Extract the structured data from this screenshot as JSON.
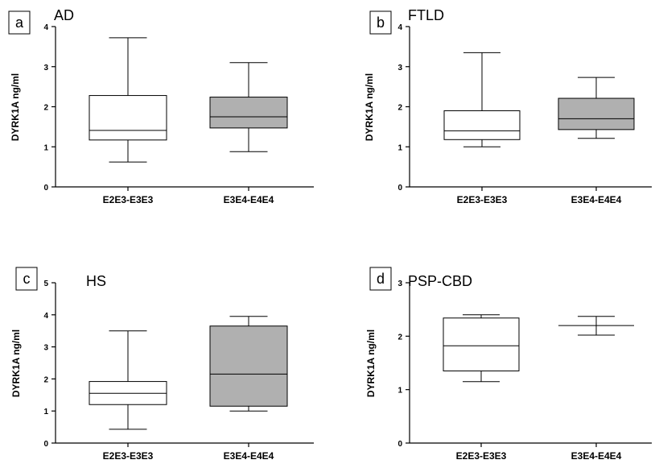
{
  "chart_data": [
    {
      "type": "box",
      "panel_letter": "a",
      "title": "AD",
      "ylabel": "DYRK1A ng/ml",
      "ylim": [
        0,
        4
      ],
      "yticks": [
        "0",
        "1",
        "2",
        "3",
        "4"
      ],
      "categories": [
        "E2E3-E3E3",
        "E3E4-E4E4"
      ],
      "boxes": [
        {
          "min": 0.62,
          "q1": 1.17,
          "median": 1.41,
          "q3": 2.28,
          "max": 3.72,
          "fill": "#ffffff"
        },
        {
          "min": 0.88,
          "q1": 1.47,
          "median": 1.75,
          "q3": 2.24,
          "max": 3.1,
          "fill": "#b0b0b0"
        }
      ]
    },
    {
      "type": "box",
      "panel_letter": "b",
      "title": "FTLD",
      "ylabel": "DYRK1A ng/ml",
      "ylim": [
        0,
        4
      ],
      "yticks": [
        "0",
        "1",
        "2",
        "3",
        "4"
      ],
      "categories": [
        "E2E3-E3E3",
        "E3E4-E4E4"
      ],
      "boxes": [
        {
          "min": 1.0,
          "q1": 1.18,
          "median": 1.4,
          "q3": 1.9,
          "max": 3.35,
          "fill": "#ffffff"
        },
        {
          "min": 1.21,
          "q1": 1.43,
          "median": 1.7,
          "q3": 2.21,
          "max": 2.73,
          "fill": "#b0b0b0"
        }
      ]
    },
    {
      "type": "box",
      "panel_letter": "c",
      "title": "HS",
      "ylabel": "DYRK1A ng/ml",
      "ylim": [
        0,
        5
      ],
      "yticks": [
        "0",
        "1",
        "2",
        "3",
        "4",
        "5"
      ],
      "categories": [
        "E2E3-E3E3",
        "E3E4-E4E4"
      ],
      "boxes": [
        {
          "min": 0.43,
          "q1": 1.2,
          "median": 1.55,
          "q3": 1.92,
          "max": 3.5,
          "fill": "#ffffff"
        },
        {
          "min": 1.0,
          "q1": 1.15,
          "median": 2.15,
          "q3": 3.65,
          "max": 3.95,
          "fill": "#b0b0b0"
        }
      ]
    },
    {
      "type": "box",
      "panel_letter": "d",
      "title": "PSP-CBD",
      "ylabel": "DYRK1A ng/ml",
      "ylim": [
        0,
        3
      ],
      "yticks": [
        "0",
        "1",
        "2",
        "3"
      ],
      "categories": [
        "E2E3-E3E3",
        "E3E4-E4E4"
      ],
      "boxes": [
        {
          "min": 1.15,
          "q1": 1.35,
          "median": 1.82,
          "q3": 2.34,
          "max": 2.4,
          "fill": "#ffffff"
        },
        {
          "min": 2.02,
          "q1": 2.2,
          "median": 2.2,
          "q3": 2.2,
          "max": 2.37,
          "fill": "#b0b0b0"
        }
      ]
    }
  ]
}
